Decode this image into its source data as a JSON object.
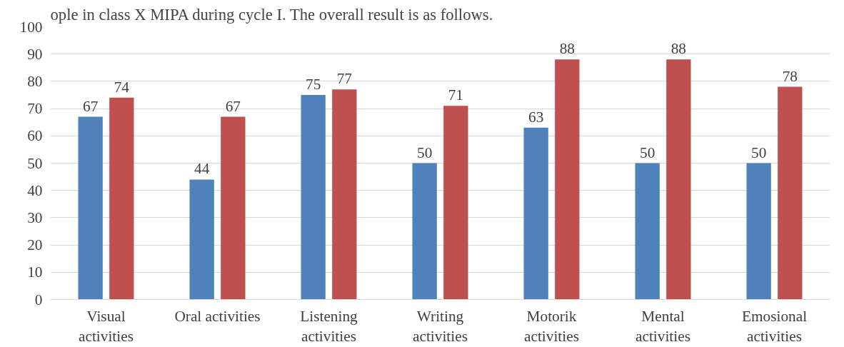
{
  "chart_data": {
    "type": "bar",
    "annotations": [
      "ople in class X MIPA during cycle I. The overall result is as follows."
    ],
    "categories": [
      "Visual activities",
      "Oral activities",
      "Listening activities",
      "Writing activities",
      "Motorik activities",
      "Mental activities",
      "Emosional activities"
    ],
    "series": [
      {
        "color": "#4f81bd",
        "values": [
          67,
          44,
          75,
          50,
          63,
          50,
          50
        ]
      },
      {
        "color": "#c0504d",
        "values": [
          74,
          67,
          77,
          71,
          88,
          88,
          78
        ]
      }
    ],
    "ylim": [
      0,
      100
    ],
    "yticks": [
      0,
      10,
      20,
      30,
      40,
      50,
      60,
      70,
      80,
      90,
      100
    ],
    "grid": "y",
    "data_labels": true
  }
}
